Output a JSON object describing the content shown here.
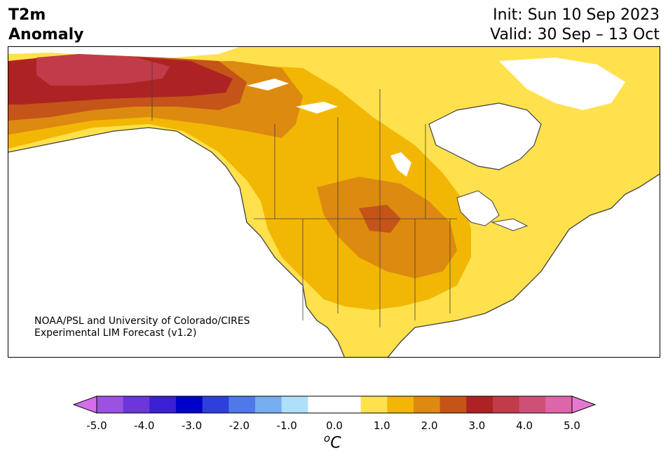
{
  "header": {
    "title_line1": "T2m",
    "title_line2": "Anomaly",
    "init": "Init: Sun 10 Sep 2023",
    "valid": "Valid: 30 Sep – 13 Oct"
  },
  "credit": {
    "line1": "NOAA/PSL and University of Colorado/CIRES",
    "line2": "Experimental LIM Forecast (v1.2)"
  },
  "colorbar": {
    "ticks": [
      "-5.0",
      "-4.0",
      "-3.0",
      "-2.0",
      "-1.0",
      "0.0",
      "1.0",
      "2.0",
      "3.0",
      "4.0",
      "5.0"
    ],
    "unit_o": "o",
    "unit_c": "C",
    "colors": [
      "#d46ee8",
      "#9b52e0",
      "#6b36db",
      "#3a1fd4",
      "#0000cc",
      "#2d3fdc",
      "#4f79e8",
      "#76aef0",
      "#aee0fa",
      "#ffffff",
      "#ffffff",
      "#ffe14d",
      "#f2b705",
      "#dd8a10",
      "#c45418",
      "#ad2323",
      "#c23b4b",
      "#cf5077",
      "#dc66a8",
      "#e678d4"
    ]
  }
}
